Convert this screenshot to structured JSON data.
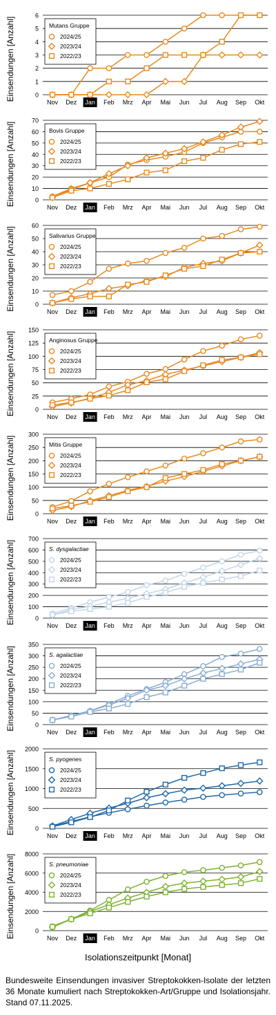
{
  "months": [
    "Nov",
    "Dez",
    "Jan",
    "Feb",
    "Mrz",
    "Apr",
    "Mai",
    "Jun",
    "Jul",
    "Aug",
    "Sep",
    "Okt"
  ],
  "highlight_month": "Jan",
  "ylabel": "Einsendungen [Anzahl]",
  "xlabel": "Isolationszeitpunkt [Monat]",
  "caption": "Bundesweite Einsendungen invasiver Streptokokken-Isolate der letzten 36 Monate kumuliert nach Streptokokken-Art/Gruppe und Isolationsjahr. Stand 07.11.2025.",
  "chart_data": [
    {
      "type": "line",
      "title": "Mutans Gruppe",
      "italic": false,
      "color": "#e8891e",
      "ylim": [
        0,
        6
      ],
      "yticks": [
        0,
        1,
        2,
        3,
        4,
        5,
        6
      ],
      "legend": "top-left",
      "series": [
        {
          "name": "2024/25",
          "marker": "circle",
          "values": [
            0,
            0,
            2,
            2,
            3,
            3,
            4,
            5,
            6,
            6,
            6,
            6
          ]
        },
        {
          "name": "2023/24",
          "marker": "diamond",
          "values": [
            0,
            0,
            0,
            0,
            0,
            0,
            1,
            1,
            3,
            3,
            3,
            3
          ]
        },
        {
          "name": "2022/23",
          "marker": "square",
          "values": [
            0,
            0,
            0,
            1,
            1,
            2,
            3,
            3,
            3,
            4,
            6,
            6
          ]
        }
      ]
    },
    {
      "type": "line",
      "title": "Bovis Gruppe",
      "italic": false,
      "color": "#e8891e",
      "ylim": [
        0,
        70
      ],
      "yticks": [
        0,
        10,
        20,
        30,
        40,
        50,
        60,
        70
      ],
      "legend": "top-left",
      "series": [
        {
          "name": "2024/25",
          "marker": "circle",
          "values": [
            3,
            10,
            15,
            20,
            31,
            35,
            38,
            42,
            50,
            55,
            60,
            60
          ]
        },
        {
          "name": "2023/24",
          "marker": "diamond",
          "values": [
            2,
            9,
            15,
            23,
            30,
            37,
            41,
            45,
            51,
            57,
            64,
            69
          ]
        },
        {
          "name": "2022/23",
          "marker": "square",
          "values": [
            2,
            8,
            10,
            14,
            18,
            24,
            26,
            34,
            37,
            44,
            49,
            51
          ]
        }
      ]
    },
    {
      "type": "line",
      "title": "Salivarius Gruppe",
      "italic": false,
      "color": "#e8891e",
      "ylim": [
        0,
        60
      ],
      "yticks": [
        0,
        10,
        20,
        30,
        40,
        50,
        60
      ],
      "legend": "top-left",
      "series": [
        {
          "name": "2024/25",
          "marker": "circle",
          "values": [
            7,
            10,
            17,
            27,
            31,
            33,
            39,
            43,
            50,
            52,
            57,
            59
          ]
        },
        {
          "name": "2023/24",
          "marker": "diamond",
          "values": [
            1,
            5,
            8,
            12,
            14,
            18,
            21,
            28,
            31,
            33,
            39,
            45
          ]
        },
        {
          "name": "2022/23",
          "marker": "square",
          "values": [
            1,
            4,
            6,
            6,
            15,
            17,
            22,
            27,
            29,
            34,
            39,
            40
          ]
        }
      ]
    },
    {
      "type": "line",
      "title": "Anginosus Gruppe",
      "italic": false,
      "color": "#e8891e",
      "ylim": [
        0,
        150
      ],
      "yticks": [
        0,
        25,
        50,
        75,
        100,
        125,
        150
      ],
      "legend": "top-left",
      "series": [
        {
          "name": "2024/25",
          "marker": "circle",
          "values": [
            13,
            20,
            28,
            43,
            52,
            67,
            76,
            94,
            110,
            120,
            132,
            139
          ]
        },
        {
          "name": "2023/24",
          "marker": "diamond",
          "values": [
            5,
            12,
            21,
            32,
            46,
            54,
            66,
            74,
            82,
            90,
            98,
            107
          ]
        },
        {
          "name": "2022/23",
          "marker": "square",
          "values": [
            8,
            13,
            20,
            26,
            36,
            51,
            57,
            72,
            83,
            93,
            98,
            104
          ]
        }
      ]
    },
    {
      "type": "line",
      "title": "Mitis Gruppe",
      "italic": false,
      "color": "#e8891e",
      "ylim": [
        0,
        300
      ],
      "yticks": [
        0,
        50,
        100,
        150,
        200,
        250,
        300
      ],
      "legend": "top-left",
      "series": [
        {
          "name": "2024/25",
          "marker": "circle",
          "values": [
            25,
            48,
            85,
            113,
            138,
            160,
            182,
            208,
            228,
            250,
            273,
            280
          ]
        },
        {
          "name": "2023/24",
          "marker": "diamond",
          "values": [
            12,
            27,
            49,
            68,
            88,
            103,
            123,
            140,
            160,
            180,
            200,
            215
          ]
        },
        {
          "name": "2022/23",
          "marker": "square",
          "values": [
            20,
            30,
            45,
            63,
            85,
            100,
            135,
            150,
            165,
            187,
            200,
            215
          ]
        }
      ]
    },
    {
      "type": "line",
      "title": "S. dysgalactiae",
      "italic": true,
      "color": "#c3d5e8",
      "ylim": [
        0,
        700
      ],
      "yticks": [
        0,
        100,
        200,
        300,
        400,
        500,
        600,
        700
      ],
      "legend": "top-left",
      "series": [
        {
          "name": "2024/25",
          "marker": "circle",
          "values": [
            40,
            90,
            140,
            185,
            230,
            290,
            330,
            390,
            445,
            500,
            560,
            595
          ]
        },
        {
          "name": "2023/24",
          "marker": "diamond",
          "values": [
            28,
            75,
            105,
            140,
            175,
            215,
            255,
            310,
            360,
            415,
            470,
            525
          ]
        },
        {
          "name": "2022/23",
          "marker": "square",
          "values": [
            30,
            60,
            80,
            100,
            135,
            185,
            225,
            275,
            310,
            340,
            370,
            420
          ]
        }
      ]
    },
    {
      "type": "line",
      "title": "S. agalactiae",
      "italic": true,
      "color": "#89acd4",
      "ylim": [
        0,
        350
      ],
      "yticks": [
        0,
        50,
        100,
        150,
        200,
        250,
        300,
        350
      ],
      "legend": "top-left",
      "series": [
        {
          "name": "2024/25",
          "marker": "circle",
          "values": [
            20,
            40,
            60,
            90,
            125,
            155,
            185,
            220,
            255,
            295,
            310,
            330
          ]
        },
        {
          "name": "2023/24",
          "marker": "diamond",
          "values": [
            20,
            38,
            60,
            85,
            115,
            150,
            170,
            200,
            225,
            245,
            265,
            285
          ]
        },
        {
          "name": "2022/23",
          "marker": "square",
          "values": [
            20,
            35,
            55,
            70,
            90,
            120,
            140,
            170,
            200,
            220,
            240,
            270
          ]
        }
      ]
    },
    {
      "type": "line",
      "title": "S. pyogenes",
      "italic": true,
      "color": "#1d68a8",
      "ylim": [
        0,
        2000
      ],
      "yticks": [
        0,
        500,
        1000,
        1500,
        2000
      ],
      "legend": "top-left",
      "series": [
        {
          "name": "2024/25",
          "marker": "circle",
          "values": [
            50,
            170,
            290,
            390,
            480,
            570,
            650,
            720,
            790,
            835,
            875,
            910
          ]
        },
        {
          "name": "2023/24",
          "marker": "diamond",
          "values": [
            60,
            220,
            380,
            510,
            630,
            770,
            870,
            960,
            1010,
            1070,
            1130,
            1190
          ]
        },
        {
          "name": "2022/23",
          "marker": "square",
          "values": [
            40,
            150,
            280,
            450,
            700,
            920,
            1100,
            1270,
            1390,
            1510,
            1590,
            1660
          ]
        }
      ]
    },
    {
      "type": "line",
      "title": "S. pneumoniae",
      "italic": true,
      "color": "#7cb12f",
      "ylim": [
        0,
        8000
      ],
      "yticks": [
        0,
        2000,
        4000,
        6000,
        8000
      ],
      "legend": "top-left",
      "series": [
        {
          "name": "2024/25",
          "marker": "circle",
          "values": [
            450,
            1200,
            2100,
            3200,
            4300,
            5100,
            5700,
            6100,
            6300,
            6550,
            6800,
            7150
          ]
        },
        {
          "name": "2023/24",
          "marker": "diamond",
          "values": [
            350,
            1200,
            2000,
            2700,
            3400,
            4000,
            4600,
            4950,
            5150,
            5350,
            5600,
            6150
          ]
        },
        {
          "name": "2022/23",
          "marker": "square",
          "values": [
            400,
            1200,
            1800,
            2400,
            3000,
            3550,
            4000,
            4350,
            4550,
            4750,
            4950,
            5400
          ]
        }
      ]
    }
  ]
}
